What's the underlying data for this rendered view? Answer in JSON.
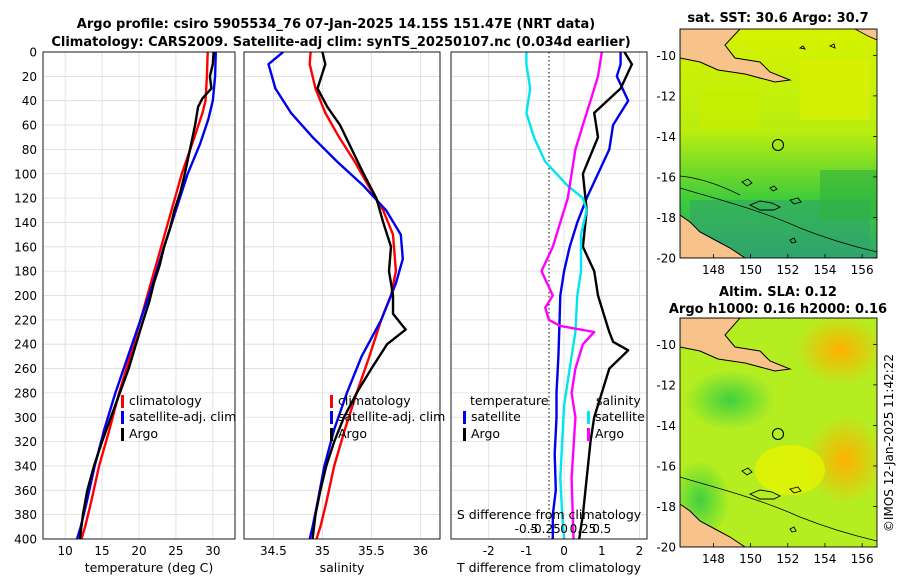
{
  "title": {
    "line1": "Argo profile: csiro 5905534_76 07-Jan-2025 14.15S 151.47E (NRT data)",
    "line2": "Climatology: CARS2009. Satellite-adj clim: synTS_20250107.nc (0.034d earlier)"
  },
  "colors": {
    "climatology": "#ff0000",
    "satellite": "#0000ee",
    "argo": "#000000",
    "sal_sat": "#00e5ee",
    "sal_argo": "#ff00ff"
  },
  "chart_data": [
    {
      "id": "temperature",
      "type": "line",
      "xlabel": "temperature (deg C)",
      "ylabel": "",
      "xlim": [
        7,
        33
      ],
      "ylim": [
        400,
        0
      ],
      "xticks": [
        10,
        15,
        20,
        25,
        30
      ],
      "xtick_labels": [
        "10",
        "15",
        "20",
        "25",
        "30"
      ],
      "yticks": [
        0,
        20,
        40,
        60,
        80,
        100,
        120,
        140,
        160,
        180,
        200,
        220,
        240,
        260,
        280,
        300,
        320,
        340,
        360,
        380,
        400
      ],
      "ytick_labels": [
        "0",
        "20",
        "40",
        "60",
        "80",
        "100",
        "120",
        "140",
        "160",
        "180",
        "200",
        "220",
        "240",
        "260",
        "280",
        "300",
        "320",
        "340",
        "360",
        "380",
        "400"
      ],
      "grid": true,
      "legend": {
        "placement": "lower-right",
        "entries": [
          "climatology",
          "satellite-adj. clim",
          "Argo"
        ]
      },
      "series": [
        {
          "name": "climatology",
          "color": "#ff0000",
          "x": [
            29.3,
            29.2,
            29.0,
            28.6,
            27.5,
            25.8,
            24.4,
            23.0,
            21.6,
            20.2,
            18.8,
            17.3,
            16.0,
            14.6,
            13.5,
            12.7,
            12.2
          ],
          "y": [
            0,
            20,
            40,
            50,
            70,
            100,
            130,
            160,
            190,
            220,
            250,
            280,
            310,
            340,
            370,
            390,
            400
          ]
        },
        {
          "name": "satellite-adj. clim",
          "color": "#0000ee",
          "x": [
            30.4,
            30.3,
            30.0,
            29.4,
            28.3,
            26.6,
            25.0,
            23.4,
            21.9,
            20.2,
            18.5,
            16.8,
            15.3,
            14.0,
            12.9,
            12.1,
            11.6
          ],
          "y": [
            0,
            20,
            40,
            55,
            75,
            100,
            130,
            160,
            190,
            220,
            250,
            280,
            310,
            340,
            370,
            390,
            400
          ]
        },
        {
          "name": "Argo",
          "color": "#000000",
          "x": [
            30.1,
            30.0,
            29.6,
            29.8,
            28.6,
            28.0,
            27.6,
            26.9,
            26.2,
            25.6,
            24.8,
            24.2,
            23.4,
            22.8,
            22.0,
            21.4,
            20.6,
            19.6,
            18.6,
            17.4,
            16.2,
            15.0,
            13.9,
            13.0,
            12.4,
            12.0
          ],
          "y": [
            0,
            10,
            20,
            30,
            38,
            45,
            60,
            80,
            100,
            115,
            130,
            145,
            160,
            175,
            190,
            205,
            220,
            240,
            260,
            280,
            300,
            320,
            340,
            360,
            380,
            400
          ]
        }
      ]
    },
    {
      "id": "salinity",
      "type": "line",
      "xlabel": "salinity",
      "xlim": [
        34.2,
        36.2
      ],
      "ylim": [
        400,
        0
      ],
      "xticks": [
        34.5,
        35,
        35.5,
        36
      ],
      "xtick_labels": [
        "34.5",
        "35",
        "35.5",
        "36"
      ],
      "grid": true,
      "legend": {
        "placement": "lower-right",
        "entries": [
          "climatology",
          "satellite-adj. clim",
          "Argo"
        ]
      },
      "series": [
        {
          "name": "climatology",
          "color": "#ff0000",
          "x": [
            34.88,
            34.87,
            34.93,
            35.03,
            35.17,
            35.33,
            35.47,
            35.62,
            35.72,
            35.75,
            35.7,
            35.6,
            35.48,
            35.35,
            35.23,
            35.12,
            35.04,
            34.98,
            34.94
          ],
          "y": [
            0,
            10,
            30,
            50,
            70,
            90,
            110,
            130,
            150,
            180,
            200,
            220,
            250,
            280,
            310,
            340,
            370,
            390,
            400
          ]
        },
        {
          "name": "satellite-adj. clim",
          "color": "#0000ee",
          "x": [
            34.6,
            34.45,
            34.52,
            34.68,
            34.9,
            35.15,
            35.42,
            35.65,
            35.8,
            35.82,
            35.75,
            35.6,
            35.4,
            35.25,
            35.12,
            35.02,
            34.95,
            34.9,
            34.87
          ],
          "y": [
            0,
            10,
            30,
            50,
            70,
            90,
            110,
            130,
            150,
            170,
            190,
            220,
            250,
            280,
            310,
            340,
            370,
            390,
            400
          ]
        },
        {
          "name": "Argo",
          "color": "#000000",
          "x": [
            35.0,
            35.03,
            34.95,
            35.05,
            35.18,
            35.3,
            35.42,
            35.55,
            35.62,
            35.7,
            35.68,
            35.72,
            35.72,
            35.85,
            35.66,
            35.5,
            35.35,
            35.22,
            35.12,
            35.04,
            34.98,
            34.93,
            34.9
          ],
          "y": [
            0,
            10,
            30,
            45,
            60,
            80,
            100,
            120,
            140,
            160,
            180,
            200,
            215,
            228,
            240,
            260,
            280,
            300,
            320,
            340,
            360,
            380,
            400
          ]
        }
      ]
    },
    {
      "id": "differences",
      "type": "line",
      "xlabel": "T difference from climatology",
      "xlabel_top": "S difference from climatology",
      "xlim": [
        -3,
        2.2
      ],
      "ylim": [
        400,
        0
      ],
      "xticks": [
        -2,
        -1,
        0,
        1,
        2
      ],
      "xtick_labels": [
        "-2",
        "-1",
        "0",
        "1",
        "2"
      ],
      "s_xticks": [
        -0.5,
        -0.25,
        0,
        0.25,
        0.5
      ],
      "s_xtick_labels": [
        "-0.5",
        "-0.25",
        "0",
        "0.25",
        "0.5"
      ],
      "s_scale_note": "S axis drawn at 2x of T axis",
      "grid": true,
      "legend": {
        "placement": "lower",
        "temperature_header": "temperature",
        "salinity_header": "salinity",
        "entries": [
          "satellite",
          "Argo",
          "satellite",
          "Argo"
        ]
      },
      "series": [
        {
          "name": "T satellite",
          "group": "temperature",
          "color": "#0000ee",
          "x": [
            1.5,
            1.5,
            1.4,
            1.7,
            1.3,
            1.2,
            0.9,
            0.6,
            0.35,
            0.15,
            0.0,
            -0.1,
            -0.12,
            -0.15,
            -0.2,
            -0.2,
            -0.25,
            -0.22,
            -0.3,
            -0.3
          ],
          "y": [
            0,
            10,
            20,
            40,
            60,
            80,
            100,
            120,
            140,
            160,
            180,
            200,
            220,
            250,
            280,
            300,
            330,
            360,
            380,
            400
          ]
        },
        {
          "name": "T Argo",
          "group": "temperature",
          "color": "#000000",
          "x": [
            1.6,
            1.8,
            1.5,
            0.8,
            0.9,
            0.5,
            0.6,
            0.5,
            0.8,
            0.9,
            1.1,
            1.2,
            1.3,
            1.7,
            1.2,
            1.0,
            0.8,
            0.7,
            0.6,
            0.5,
            0.4
          ],
          "y": [
            0,
            10,
            30,
            50,
            70,
            100,
            130,
            160,
            180,
            200,
            220,
            230,
            238,
            245,
            260,
            280,
            300,
            320,
            350,
            380,
            400
          ]
        },
        {
          "name": "S satellite",
          "group": "salinity",
          "color": "#00e5ee",
          "x": [
            -1.0,
            -1.0,
            -0.9,
            -1.0,
            -0.8,
            -0.5,
            0.1,
            0.5,
            0.6,
            0.45,
            0.45,
            0.35,
            0.3,
            0.15,
            0.0,
            -0.05,
            -0.1,
            -0.05,
            0.0
          ],
          "y": [
            0,
            10,
            30,
            50,
            70,
            90,
            110,
            120,
            130,
            150,
            180,
            200,
            230,
            260,
            290,
            320,
            350,
            380,
            400
          ]
        },
        {
          "name": "S Argo",
          "group": "salinity",
          "color": "#ff00ff",
          "x": [
            1.0,
            0.9,
            0.7,
            0.5,
            0.3,
            0.2,
            0.1,
            -0.1,
            -0.3,
            -0.6,
            -0.3,
            -0.5,
            -0.4,
            -0.1,
            0.8,
            0.5,
            0.3,
            0.2,
            0.3,
            0.2,
            0.25
          ],
          "y": [
            0,
            20,
            40,
            60,
            80,
            100,
            120,
            140,
            160,
            180,
            200,
            210,
            220,
            225,
            230,
            240,
            260,
            280,
            300,
            350,
            400
          ]
        }
      ]
    }
  ],
  "maps": {
    "sst": {
      "title": "sat. SST: 30.6 Argo: 30.7",
      "xtick_labels": [
        "148",
        "150",
        "152",
        "154",
        "156"
      ],
      "ytick_labels": [
        "-10",
        "-12",
        "-14",
        "-16",
        "-18",
        "-20"
      ]
    },
    "sla": {
      "title_line1": "Altim. SLA: 0.12",
      "title_line2": "Argo h1000: 0.16 h2000: 0.16",
      "xtick_labels": [
        "148",
        "150",
        "152",
        "154",
        "156"
      ],
      "ytick_labels": [
        "-10",
        "-12",
        "-14",
        "-16",
        "-18",
        "-20"
      ]
    }
  },
  "credit": "©IMOS 12-Jan-2025 11:42:22"
}
